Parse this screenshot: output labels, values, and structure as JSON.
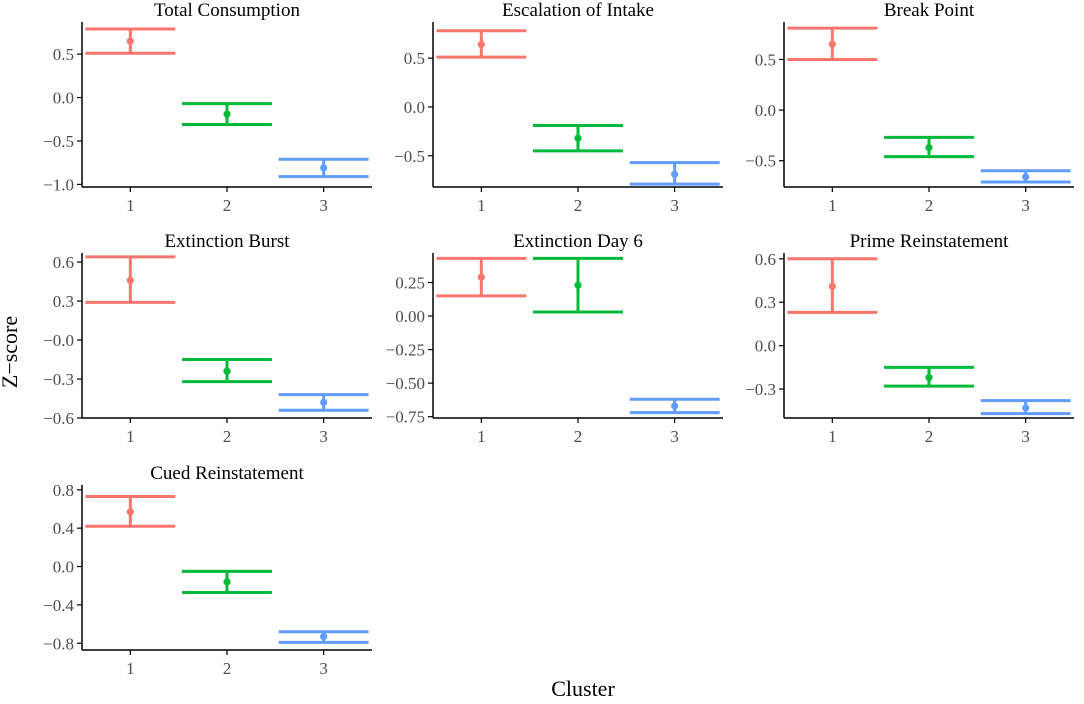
{
  "chart_data": {
    "type": "errorbar",
    "xlabel": "Cluster",
    "ylabel": "Z−score",
    "categories": [
      "1",
      "2",
      "3"
    ],
    "cluster_colors": [
      "#F8766D",
      "#00BA38",
      "#619CFF"
    ],
    "panels": [
      {
        "title": "Total Consumption",
        "ylim": [
          -1.03,
          0.87
        ],
        "yticks": [
          0.5,
          0.0,
          -0.5,
          -1.0
        ],
        "ytick_labels": [
          "0.5",
          "0.0",
          "−0.5",
          "−1.0"
        ],
        "points": [
          {
            "cluster": "1",
            "mean": 0.65,
            "lower": 0.51,
            "upper": 0.79
          },
          {
            "cluster": "2",
            "mean": -0.19,
            "lower": -0.31,
            "upper": -0.07
          },
          {
            "cluster": "3",
            "mean": -0.81,
            "lower": -0.91,
            "upper": -0.71
          }
        ]
      },
      {
        "title": "Escalation of Intake",
        "ylim": [
          -0.82,
          0.87
        ],
        "yticks": [
          0.5,
          0.0,
          -0.5
        ],
        "ytick_labels": [
          "0.5",
          "0.0",
          "−0.5"
        ],
        "points": [
          {
            "cluster": "1",
            "mean": 0.64,
            "lower": 0.51,
            "upper": 0.78
          },
          {
            "cluster": "2",
            "mean": -0.32,
            "lower": -0.45,
            "upper": -0.19
          },
          {
            "cluster": "3",
            "mean": -0.69,
            "lower": -0.79,
            "upper": -0.57
          }
        ]
      },
      {
        "title": "Break Point",
        "ylim": [
          -0.76,
          0.87
        ],
        "yticks": [
          0.5,
          0.0,
          -0.5
        ],
        "ytick_labels": [
          "0.5",
          "0.0",
          "−0.5"
        ],
        "points": [
          {
            "cluster": "1",
            "mean": 0.65,
            "lower": 0.5,
            "upper": 0.81
          },
          {
            "cluster": "2",
            "mean": -0.37,
            "lower": -0.46,
            "upper": -0.27
          },
          {
            "cluster": "3",
            "mean": -0.66,
            "lower": -0.71,
            "upper": -0.6
          }
        ]
      },
      {
        "title": "Extinction Burst",
        "ylim": [
          -0.6,
          0.67
        ],
        "yticks": [
          0.6,
          0.3,
          0.0,
          -0.3,
          -0.6
        ],
        "ytick_labels": [
          "0.6",
          "0.3",
          "−0.0",
          "−0.3",
          "−0.6"
        ],
        "points": [
          {
            "cluster": "1",
            "mean": 0.46,
            "lower": 0.29,
            "upper": 0.64
          },
          {
            "cluster": "2",
            "mean": -0.24,
            "lower": -0.32,
            "upper": -0.15
          },
          {
            "cluster": "3",
            "mean": -0.48,
            "lower": -0.54,
            "upper": -0.42
          }
        ]
      },
      {
        "title": "Extinction Day 6",
        "ylim": [
          -0.76,
          0.47
        ],
        "yticks": [
          0.25,
          0.0,
          -0.25,
          -0.5,
          -0.75
        ],
        "ytick_labels": [
          "0.25",
          "0.00",
          "−0.25",
          "−0.50",
          "−0.75"
        ],
        "points": [
          {
            "cluster": "1",
            "mean": 0.29,
            "lower": 0.15,
            "upper": 0.43
          },
          {
            "cluster": "2",
            "mean": 0.23,
            "lower": 0.03,
            "upper": 0.43
          },
          {
            "cluster": "3",
            "mean": -0.67,
            "lower": -0.72,
            "upper": -0.62
          }
        ]
      },
      {
        "title": "Prime Reinstatement",
        "ylim": [
          -0.5,
          0.64
        ],
        "yticks": [
          0.6,
          0.3,
          0.0,
          -0.3
        ],
        "ytick_labels": [
          "0.6",
          "0.3",
          "0.0",
          "−0.3"
        ],
        "points": [
          {
            "cluster": "1",
            "mean": 0.41,
            "lower": 0.23,
            "upper": 0.6
          },
          {
            "cluster": "2",
            "mean": -0.22,
            "lower": -0.28,
            "upper": -0.15
          },
          {
            "cluster": "3",
            "mean": -0.43,
            "lower": -0.47,
            "upper": -0.38
          }
        ]
      },
      {
        "title": "Cued Reinstatement",
        "ylim": [
          -0.87,
          0.85
        ],
        "yticks": [
          0.8,
          0.4,
          0.0,
          -0.4,
          -0.8
        ],
        "ytick_labels": [
          "0.8",
          "0.4",
          "0.0",
          "−0.4",
          "−0.8"
        ],
        "points": [
          {
            "cluster": "1",
            "mean": 0.57,
            "lower": 0.42,
            "upper": 0.73
          },
          {
            "cluster": "2",
            "mean": -0.16,
            "lower": -0.27,
            "upper": -0.05
          },
          {
            "cluster": "3",
            "mean": -0.73,
            "lower": -0.79,
            "upper": -0.68
          }
        ]
      }
    ]
  }
}
